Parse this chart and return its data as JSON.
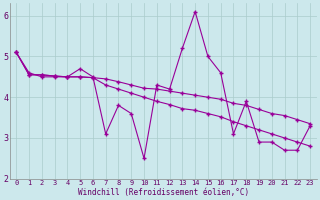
{
  "xlabel": "Windchill (Refroidissement éolien,°C)",
  "ylabel": "",
  "xlim": [
    -0.5,
    23.5
  ],
  "ylim": [
    2,
    6.3
  ],
  "yticks": [
    2,
    3,
    4,
    5,
    6
  ],
  "xticks": [
    0,
    1,
    2,
    3,
    4,
    5,
    6,
    7,
    8,
    9,
    10,
    11,
    12,
    13,
    14,
    15,
    16,
    17,
    18,
    19,
    20,
    21,
    22,
    23
  ],
  "bg_color": "#cce8ec",
  "line_color": "#990099",
  "grid_color": "#aacccc",
  "series1": [
    5.1,
    4.6,
    4.5,
    4.5,
    4.5,
    4.7,
    4.5,
    3.1,
    3.8,
    3.6,
    2.5,
    4.3,
    4.2,
    5.2,
    6.1,
    5.0,
    4.6,
    3.1,
    3.9,
    2.9,
    2.9,
    2.7,
    2.7,
    3.3
  ],
  "series2": [
    5.1,
    4.55,
    4.55,
    4.52,
    4.5,
    4.5,
    4.48,
    4.45,
    4.38,
    4.3,
    4.22,
    4.2,
    4.15,
    4.1,
    4.05,
    4.0,
    3.95,
    3.85,
    3.8,
    3.7,
    3.6,
    3.55,
    3.45,
    3.35
  ],
  "series3": [
    5.1,
    4.55,
    4.55,
    4.52,
    4.5,
    4.5,
    4.48,
    4.3,
    4.2,
    4.1,
    4.0,
    3.9,
    3.82,
    3.72,
    3.68,
    3.6,
    3.52,
    3.4,
    3.3,
    3.2,
    3.1,
    3.0,
    2.9,
    2.8
  ],
  "figsize": [
    3.2,
    2.0
  ],
  "dpi": 100
}
